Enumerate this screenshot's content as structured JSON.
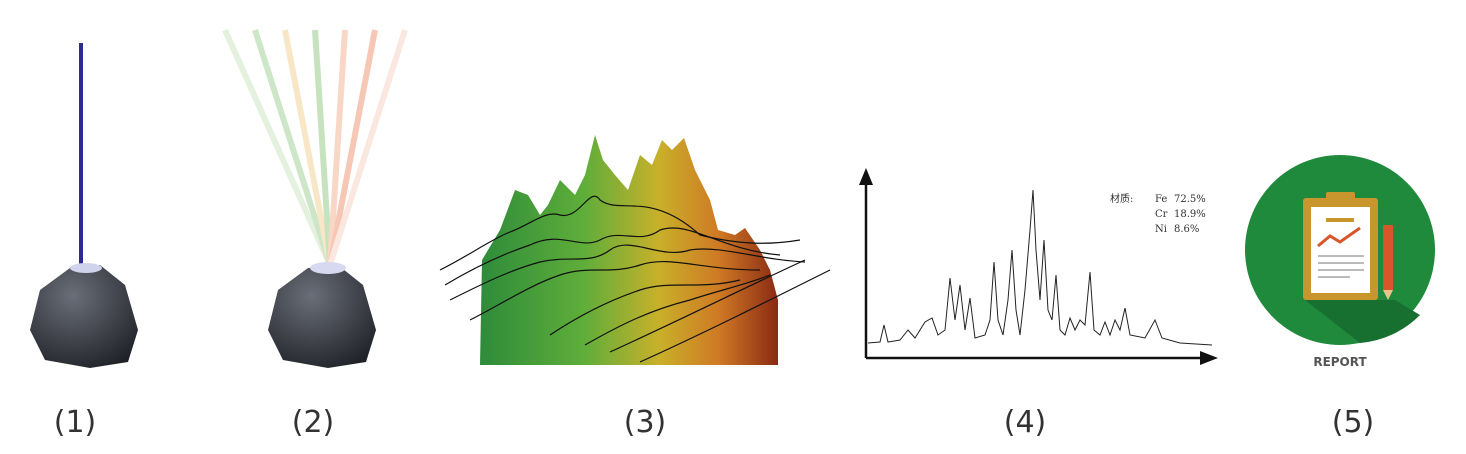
{
  "steps": [
    {
      "label": "(1)"
    },
    {
      "label": "(2)"
    },
    {
      "label": "(3)"
    },
    {
      "label": "(4)",
      "composition": {
        "title": "材质:",
        "rows": [
          [
            "Fe",
            "72.5%"
          ],
          [
            "Cr",
            "18.9%"
          ],
          [
            "Ni",
            "8.6%"
          ]
        ]
      }
    },
    {
      "label": "(5)",
      "badge": "REPORT"
    }
  ]
}
